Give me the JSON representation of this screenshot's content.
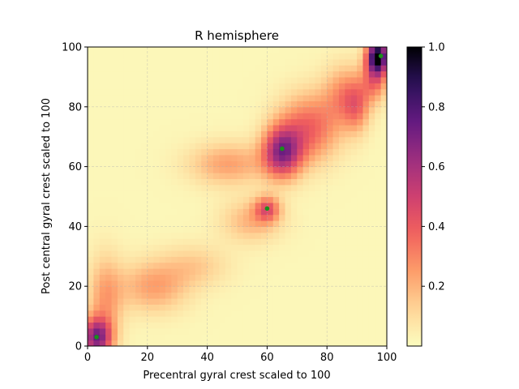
{
  "chart_data": {
    "type": "heatmap",
    "title": "R hemisphere",
    "xlabel": "Precentral gyral crest scaled to 100",
    "ylabel": "Post central gyral crest scaled to 100",
    "xlim": [
      0,
      100
    ],
    "ylim": [
      0,
      100
    ],
    "xticks": [
      0,
      20,
      40,
      60,
      80,
      100
    ],
    "yticks": [
      0,
      20,
      40,
      60,
      80,
      100
    ],
    "grid": true,
    "colormap": "magma_r",
    "colorbar": {
      "range": [
        0.0,
        1.0
      ],
      "ticks": [
        "0.2",
        "0.4",
        "0.6",
        "0.8",
        "1.0"
      ],
      "tick_values": [
        0.2,
        0.4,
        0.6,
        0.8,
        1.0
      ]
    },
    "density_blobs": [
      {
        "x": 3,
        "y": 3,
        "sx": 3.5,
        "sy": 4.5,
        "amp": 0.65
      },
      {
        "x": 6,
        "y": 16,
        "sx": 4,
        "sy": 10,
        "amp": 0.22
      },
      {
        "x": 22,
        "y": 20,
        "sx": 8,
        "sy": 6,
        "amp": 0.22
      },
      {
        "x": 36,
        "y": 27,
        "sx": 8,
        "sy": 5,
        "amp": 0.12
      },
      {
        "x": 55,
        "y": 42,
        "sx": 7,
        "sy": 5,
        "amp": 0.18
      },
      {
        "x": 60,
        "y": 46,
        "sx": 3,
        "sy": 3,
        "amp": 0.35
      },
      {
        "x": 47,
        "y": 61,
        "sx": 9,
        "sy": 5,
        "amp": 0.22
      },
      {
        "x": 65,
        "y": 65,
        "sx": 4.5,
        "sy": 6,
        "amp": 0.6
      },
      {
        "x": 74,
        "y": 73,
        "sx": 7,
        "sy": 8,
        "amp": 0.35
      },
      {
        "x": 86,
        "y": 84,
        "sx": 5,
        "sy": 7,
        "amp": 0.25
      },
      {
        "x": 97,
        "y": 97,
        "sx": 2.5,
        "sy": 4,
        "amp": 0.95
      },
      {
        "x": 96,
        "y": 89,
        "sx": 3,
        "sy": 5,
        "amp": 0.3
      },
      {
        "x": 90,
        "y": 80,
        "sx": 3,
        "sy": 6,
        "amp": 0.22
      }
    ],
    "peaks": [
      {
        "x": 3,
        "y": 3
      },
      {
        "x": 60,
        "y": 46
      },
      {
        "x": 65,
        "y": 66
      },
      {
        "x": 98,
        "y": 97
      }
    ],
    "peak_color": "#1a8f1a"
  }
}
